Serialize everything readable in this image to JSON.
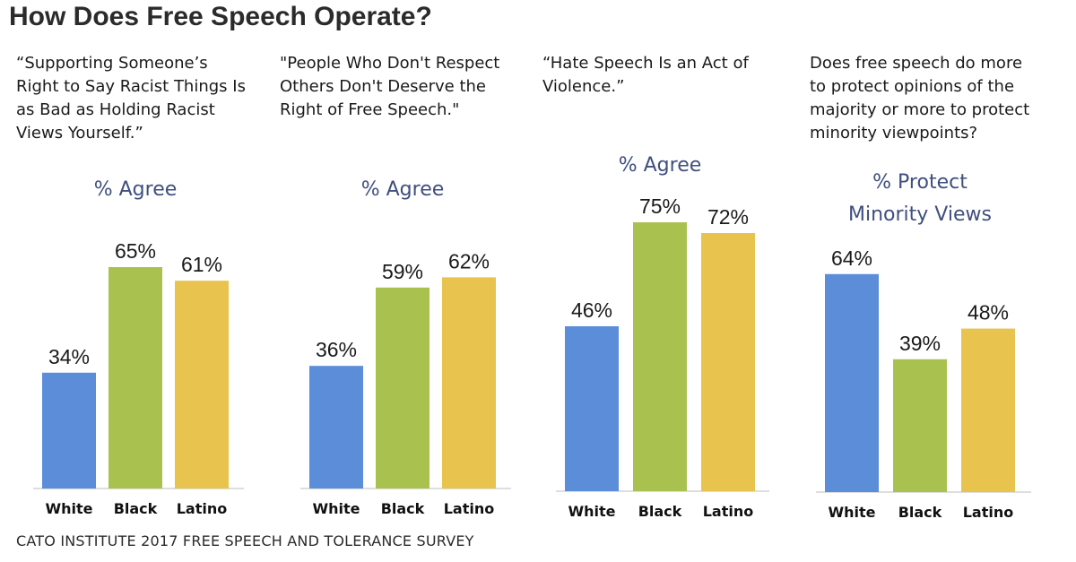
{
  "title": "How Does Free Speech Operate?",
  "source": "CATO INSTITUTE 2017 FREE SPEECH AND TOLERANCE SURVEY",
  "colors": {
    "White": "#5b8dd9",
    "Black": "#a9c24f",
    "Latino": "#e8c34d",
    "metric_text": "#3f4f7f"
  },
  "chart_data": [
    {
      "type": "bar",
      "question_lines": [
        "“Supporting Someone’s",
        "Right to Say Racist Things Is",
        "as Bad as Holding Racist",
        "Views Yourself.”"
      ],
      "metric_lines": [
        "% Agree"
      ],
      "categories": [
        "White",
        "Black",
        "Latino"
      ],
      "values": [
        34,
        65,
        61
      ],
      "value_labels": [
        "34%",
        "65%",
        "61%"
      ],
      "ylim": [
        0,
        100
      ]
    },
    {
      "type": "bar",
      "question_lines": [
        "\"People Who Don't Respect",
        "Others Don't Deserve the",
        "Right of Free Speech.\""
      ],
      "metric_lines": [
        "% Agree"
      ],
      "categories": [
        "White",
        "Black",
        "Latino"
      ],
      "values": [
        36,
        59,
        62
      ],
      "value_labels": [
        "36%",
        "59%",
        "62%"
      ],
      "ylim": [
        0,
        100
      ]
    },
    {
      "type": "bar",
      "question_lines": [
        "“Hate Speech Is an Act of",
        "Violence.”"
      ],
      "metric_lines": [
        "% Agree"
      ],
      "categories": [
        "White",
        "Black",
        "Latino"
      ],
      "values": [
        46,
        75,
        72
      ],
      "value_labels": [
        "46%",
        "75%",
        "72%"
      ],
      "ylim": [
        0,
        100
      ]
    },
    {
      "type": "bar",
      "question_lines": [
        "Does free speech do more",
        "to protect opinions of the",
        "majority or more to protect",
        "minority viewpoints?"
      ],
      "metric_lines": [
        "% Protect",
        "Minority Views"
      ],
      "categories": [
        "White",
        "Black",
        "Latino"
      ],
      "values": [
        64,
        39,
        48
      ],
      "value_labels": [
        "64%",
        "39%",
        "48%"
      ],
      "ylim": [
        0,
        100
      ]
    }
  ]
}
